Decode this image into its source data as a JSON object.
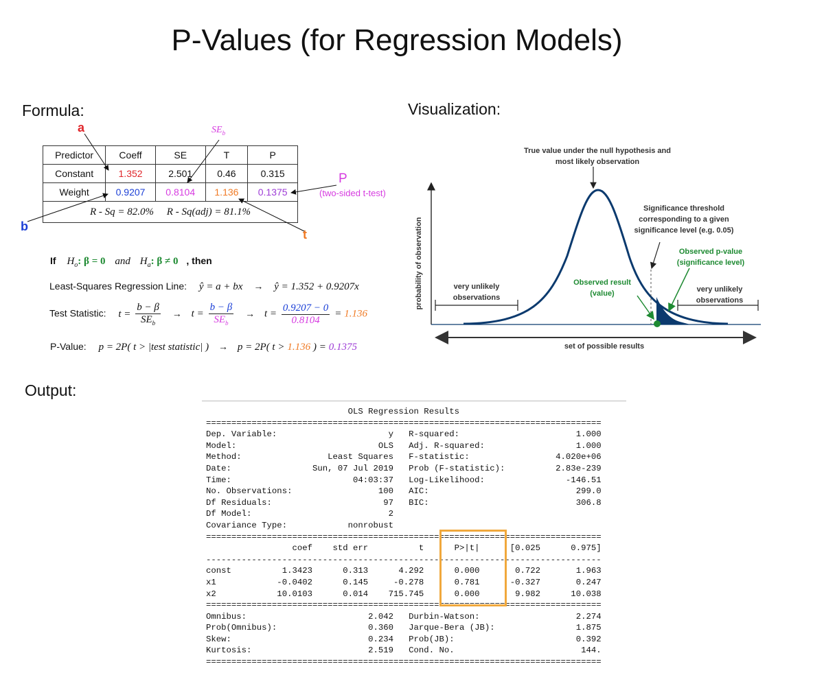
{
  "title": "P-Values (for Regression Models)",
  "sections": {
    "formula": "Formula:",
    "visualization": "Visualization:",
    "output": "Output:"
  },
  "colors": {
    "a": "#e0262b",
    "b": "#1b3fd6",
    "se": "#d63be0",
    "t": "#f07a24",
    "p": "#9d3bd6",
    "green": "#1e8a32",
    "navy": "#0b3a6e",
    "box": "#f0a83c"
  },
  "labels": {
    "a": "a",
    "b": "b",
    "t": "t",
    "se_sym": "SE",
    "se_sub": "b",
    "p": "P",
    "p_note": "(two-sided t-test)"
  },
  "coef_table": {
    "headers": [
      "Predictor",
      "Coeff",
      "SE",
      "T",
      "P"
    ],
    "rows": [
      [
        "Constant",
        "1.352",
        "2.501",
        "0.46",
        "0.315"
      ],
      [
        "Weight",
        "0.9207",
        "0.8104",
        "1.136",
        "0.1375"
      ]
    ],
    "rsq": "R - Sq = 82.0%     R - Sq(adj) = 81.1%"
  },
  "formulas": {
    "if_label": "If",
    "h0": "H",
    "h0_sub": "o",
    "h0_rel": ": β = 0",
    "and_word": "and",
    "ha": "H",
    "ha_sub": "a",
    "ha_rel": ": β ≠ 0",
    "then_word": ", then",
    "ls_label": "Least-Squares Regression Line:",
    "ls_eq1": "ŷ = a + bx",
    "ls_eq2": "ŷ = 1.352 + 0.9207x",
    "ts_label": "Test Statistic:",
    "ts_t": "t =",
    "ts_num": "b − β",
    "ts_den": "SE",
    "ts_den_sub": "b",
    "ts_num_val": "0.9207 − 0",
    "ts_den_val": "0.8104",
    "ts_result": "1.136",
    "pv_label": "P-Value:",
    "pv_eq1": "p = 2P( t > |test statistic| )",
    "pv_eq2_a": "p = 2P( t >",
    "pv_eq2_t": "1.136",
    "pv_eq2_b": ") =",
    "pv_result": "0.1375",
    "arrow": "→"
  },
  "visual": {
    "true_value_label": "True value under the null hypothesis and most likely observation",
    "threshold_label": "Significance threshold corresponding to a given significance level (e.g. 0.05)",
    "observed_p_label": "Observed p-value (significance level)",
    "observed_result_label": "Observed result (value)",
    "very_unlikely_left": "very unlikely observations",
    "very_unlikely_right": "very unlikely observations",
    "y_axis": "probability of observation",
    "x_axis": "set of possible results"
  },
  "ols": {
    "text": "                            OLS Regression Results                            \n==============================================================================\nDep. Variable:                      y   R-squared:                       1.000\nModel:                            OLS   Adj. R-squared:                  1.000\nMethod:                 Least Squares   F-statistic:                 4.020e+06\nDate:                Sun, 07 Jul 2019   Prob (F-statistic):          2.83e-239\nTime:                        04:03:37   Log-Likelihood:                -146.51\nNo. Observations:                 100   AIC:                             299.0\nDf Residuals:                      97   BIC:                             306.8\nDf Model:                           2                                         \nCovariance Type:            nonrobust                                         \n==============================================================================\n                 coef    std err          t      P>|t|      [0.025      0.975]\n------------------------------------------------------------------------------\nconst          1.3423      0.313      4.292      0.000       0.722       1.963\nx1            -0.0402      0.145     -0.278      0.781      -0.327       0.247\nx2            10.0103      0.014    715.745      0.000       9.982      10.038\n==============================================================================\nOmnibus:                        2.042   Durbin-Watson:                   2.274\nProb(Omnibus):                  0.360   Jarque-Bera (JB):                1.875\nSkew:                           0.234   Prob(JB):                        0.392\nKurtosis:                       2.519   Cond. No.                         144.\n=============================================================================="
  }
}
